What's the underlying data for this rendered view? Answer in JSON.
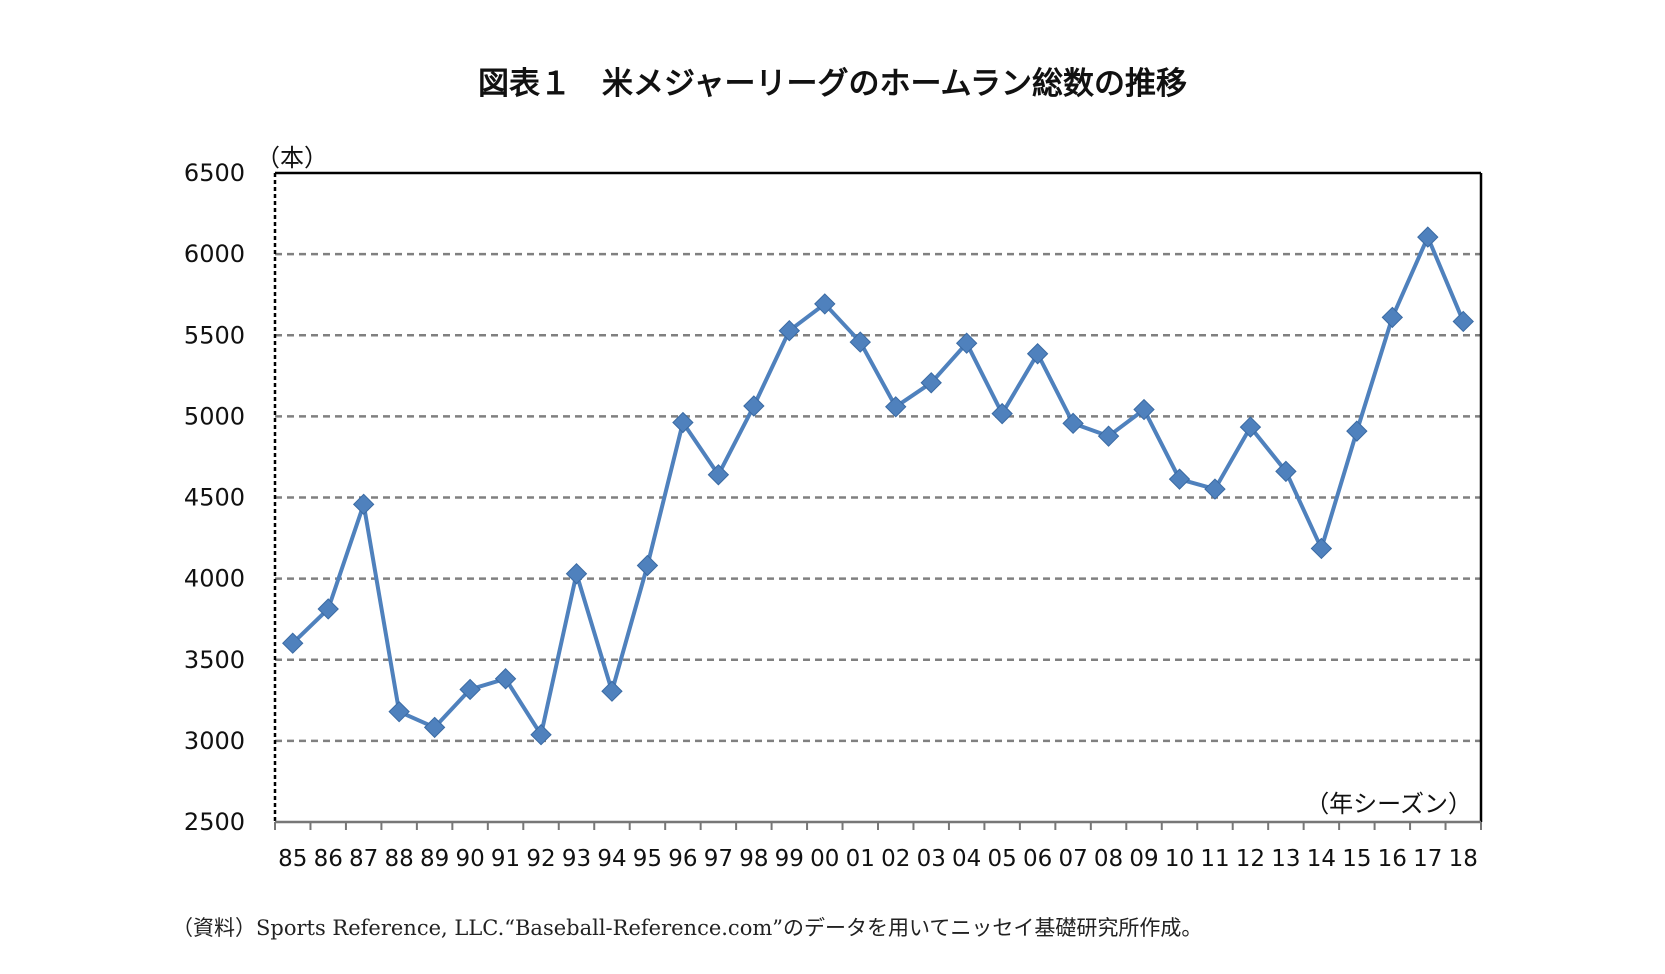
{
  "chart_data": {
    "type": "line",
    "title": "図表１　米メジャーリーグのホームラン総数の推移",
    "ylabel": "（本）",
    "xlabel": "（年シーズン）",
    "ylim": [
      2500,
      6500
    ],
    "yticks": [
      2500,
      3000,
      3500,
      4000,
      4500,
      5000,
      5500,
      6000,
      6500
    ],
    "grid": true,
    "legend": "none",
    "categories": [
      "85",
      "86",
      "87",
      "88",
      "89",
      "90",
      "91",
      "92",
      "93",
      "94",
      "95",
      "96",
      "97",
      "98",
      "99",
      "00",
      "01",
      "02",
      "03",
      "04",
      "05",
      "06",
      "07",
      "08",
      "09",
      "10",
      "11",
      "12",
      "13",
      "14",
      "15",
      "16",
      "17",
      "18"
    ],
    "series": [
      {
        "values": [
          3602,
          3813,
          4458,
          3180,
          3083,
          3317,
          3383,
          3038,
          4030,
          3306,
          4081,
          4962,
          4640,
          5064,
          5528,
          5693,
          5458,
          5059,
          5207,
          5451,
          5017,
          5386,
          4957,
          4878,
          5042,
          4613,
          4552,
          4934,
          4661,
          4186,
          4909,
          5610,
          6105,
          5585
        ]
      }
    ],
    "colors": {
      "line": "#4f81bd",
      "marker": "#4f81bd",
      "grid": "#808080",
      "axis": "#000000"
    },
    "source": "（資料）Sports Reference, LLC.“Baseball-Reference.com”のデータを用いてニッセイ基礎研究所作成。"
  }
}
